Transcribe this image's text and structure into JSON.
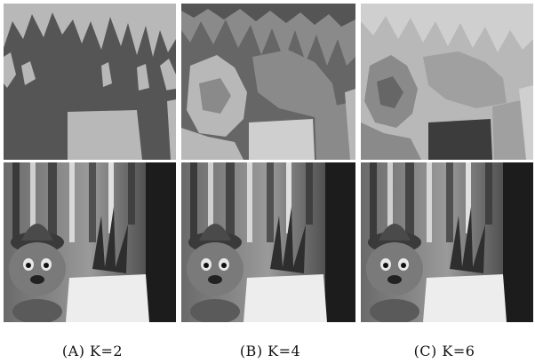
{
  "figure": {
    "columns": [
      {
        "caption": "(A) K=2",
        "segmentation_levels": 2
      },
      {
        "caption": "(B) K=4",
        "segmentation_levels": 4
      },
      {
        "caption": "(C) K=6",
        "segmentation_levels": 6
      }
    ],
    "rows": [
      "segmentation-map",
      "grayscale-photo"
    ],
    "colors": {
      "background": "#ffffff",
      "segment_dark": "#555555",
      "segment_mid": "#8a8a8a",
      "segment_light": "#b8b8b8",
      "segment_lighter": "#cfcfcf",
      "segment_darkest": "#3c3c3c"
    }
  }
}
